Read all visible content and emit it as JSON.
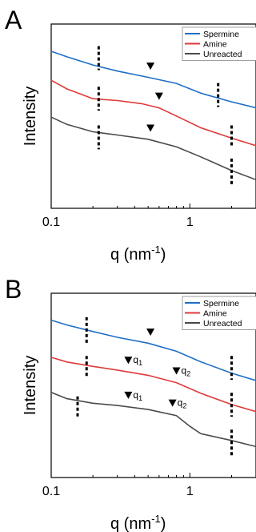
{
  "chart_data": [
    {
      "type": "line",
      "panel": "A",
      "xlabel": "q (nm",
      "xlabel_sup": "-1",
      "xlabel_close": ")",
      "ylabel": "Intensity",
      "xscale": "log",
      "xlim": [
        0.1,
        3
      ],
      "x_ticks": [
        0.1,
        1
      ],
      "x_tick_labels": [
        "0.1",
        "1"
      ],
      "legend_position": "top-right",
      "series": [
        {
          "name": "Spermine",
          "color": "#1f6fc5",
          "x": [
            0.1,
            0.13,
            0.2,
            0.3,
            0.5,
            0.8,
            1.2,
            2,
            3
          ],
          "y": [
            0.852,
            0.822,
            0.778,
            0.745,
            0.711,
            0.678,
            0.625,
            0.578,
            0.545
          ]
        },
        {
          "name": "Amine",
          "color": "#e03a3a",
          "x": [
            0.1,
            0.13,
            0.2,
            0.3,
            0.45,
            0.6,
            0.8,
            1.2,
            2,
            3
          ],
          "y": [
            0.695,
            0.648,
            0.595,
            0.585,
            0.568,
            0.545,
            0.501,
            0.437,
            0.381,
            0.34
          ]
        },
        {
          "name": "Unreacted",
          "color": "#4a4a4a",
          "x": [
            0.1,
            0.13,
            0.2,
            0.3,
            0.5,
            0.8,
            1.2,
            2,
            3
          ],
          "y": [
            0.495,
            0.455,
            0.415,
            0.398,
            0.375,
            0.334,
            0.279,
            0.205,
            0.155
          ]
        }
      ],
      "markers": [
        {
          "type": "triangle",
          "series": "Spermine",
          "x": 0.52
        },
        {
          "type": "triangle",
          "series": "Amine",
          "x": 0.6
        },
        {
          "type": "triangle",
          "series": "Unreacted",
          "x": 0.52
        },
        {
          "type": "dashed-line",
          "x": 0.22,
          "y_range": [
            0.75,
            0.88
          ]
        },
        {
          "type": "dashed-line",
          "x": 0.22,
          "y_range": [
            0.53,
            0.66
          ]
        },
        {
          "type": "dashed-line",
          "x": 0.22,
          "y_range": [
            0.32,
            0.45
          ]
        },
        {
          "type": "dashed-line",
          "x": 1.6,
          "y_range": [
            0.55,
            0.68
          ]
        },
        {
          "type": "dashed-line",
          "x": 2.0,
          "y_range": [
            0.33,
            0.45
          ]
        },
        {
          "type": "dashed-line",
          "x": 2.0,
          "y_range": [
            0.13,
            0.27
          ]
        }
      ]
    },
    {
      "type": "line",
      "panel": "B",
      "xlabel": "q (nm",
      "xlabel_sup": "-1",
      "xlabel_close": ")",
      "ylabel": "Intensity",
      "xscale": "log",
      "xlim": [
        0.1,
        3
      ],
      "x_ticks": [
        0.1,
        1
      ],
      "x_tick_labels": [
        "0.1",
        "1"
      ],
      "legend_position": "top-right",
      "series": [
        {
          "name": "Spermine",
          "color": "#1f6fc5",
          "x": [
            0.1,
            0.13,
            0.2,
            0.3,
            0.5,
            0.8,
            1.2,
            2,
            3
          ],
          "y": [
            0.854,
            0.828,
            0.792,
            0.761,
            0.729,
            0.685,
            0.628,
            0.566,
            0.526
          ]
        },
        {
          "name": "Amine",
          "color": "#e03a3a",
          "x": [
            0.1,
            0.13,
            0.2,
            0.3,
            0.5,
            0.8,
            1.2,
            2,
            3
          ],
          "y": [
            0.652,
            0.627,
            0.603,
            0.583,
            0.555,
            0.515,
            0.457,
            0.396,
            0.358
          ]
        },
        {
          "name": "Unreacted",
          "color": "#4a4a4a",
          "x": [
            0.1,
            0.13,
            0.2,
            0.3,
            0.5,
            0.8,
            1.0,
            1.2,
            2,
            3
          ],
          "y": [
            0.462,
            0.428,
            0.403,
            0.391,
            0.369,
            0.336,
            0.278,
            0.238,
            0.201,
            0.168
          ]
        }
      ],
      "markers": [
        {
          "type": "triangle",
          "series": "Spermine",
          "x": 0.52
        },
        {
          "type": "triangle",
          "series": "Amine",
          "x": 0.36,
          "label": "q",
          "sub": "1"
        },
        {
          "type": "triangle",
          "series": "Amine",
          "x": 0.8,
          "label": "q",
          "sub": "2"
        },
        {
          "type": "triangle",
          "series": "Unreacted",
          "x": 0.36,
          "label": "q",
          "sub": "1"
        },
        {
          "type": "triangle",
          "series": "Unreacted",
          "x": 0.75,
          "label": "q",
          "sub": "2"
        },
        {
          "type": "dashed-line",
          "x": 0.18,
          "y_range": [
            0.73,
            0.87
          ]
        },
        {
          "type": "dashed-line",
          "x": 0.18,
          "y_range": [
            0.54,
            0.66
          ]
        },
        {
          "type": "dashed-line",
          "x": 0.155,
          "y_range": [
            0.32,
            0.44
          ]
        },
        {
          "type": "dashed-line",
          "x": 2.0,
          "y_range": [
            0.53,
            0.66
          ]
        },
        {
          "type": "dashed-line",
          "x": 2.0,
          "y_range": [
            0.33,
            0.46
          ]
        },
        {
          "type": "dashed-line",
          "x": 2.0,
          "y_range": [
            0.12,
            0.26
          ]
        }
      ]
    }
  ]
}
